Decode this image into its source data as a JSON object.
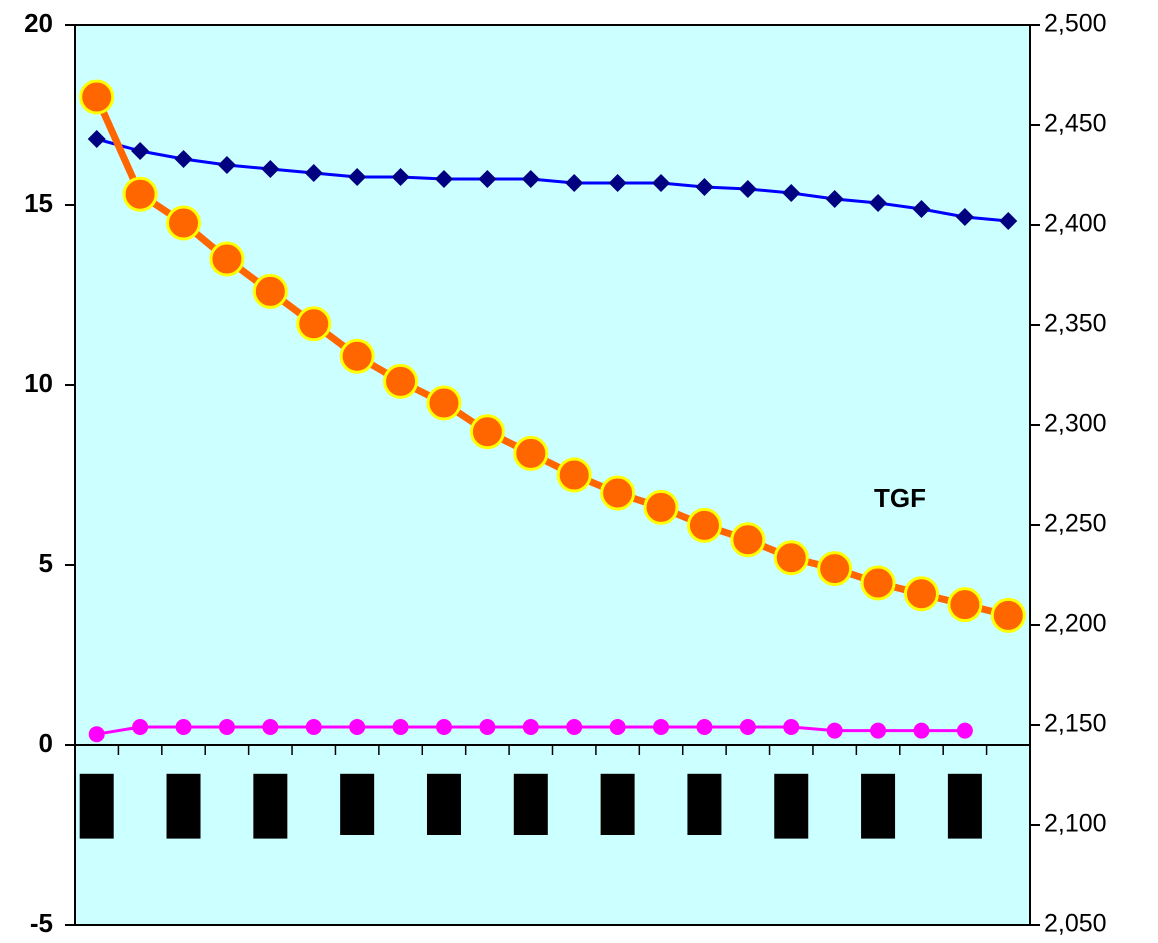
{
  "chart_data": {
    "type": "line",
    "categories": [
      null,
      null,
      null,
      null,
      null,
      null,
      null,
      null,
      null,
      null,
      null,
      null,
      null,
      null,
      null,
      null,
      null,
      null,
      null,
      null,
      null,
      null
    ],
    "ylim": [
      -5,
      20
    ],
    "yticks": [
      20,
      15,
      10,
      5,
      0,
      -5
    ],
    "y2lim": [
      2050,
      2500
    ],
    "y2ticks": [
      {
        "value": 2500,
        "label": "2,500"
      },
      {
        "value": 2450,
        "label": "2,450"
      },
      {
        "value": 2400,
        "label": "2,400"
      },
      {
        "value": 2350,
        "label": "2,350"
      },
      {
        "value": 2300,
        "label": "2,300"
      },
      {
        "value": 2250,
        "label": "2,250"
      },
      {
        "value": 2200,
        "label": "2,200"
      },
      {
        "value": 2150,
        "label": "2,150"
      },
      {
        "value": 2100,
        "label": "2,100"
      },
      {
        "value": 2050,
        "label": "2,050"
      }
    ],
    "background": "#ccffff",
    "annotation": "TGF",
    "series": [
      {
        "color": "#000080",
        "line_color": "#0000ff",
        "marker": "diamond",
        "axis": "y2",
        "values": [
          2443,
          2437,
          2433,
          2430,
          2428,
          2426,
          2424,
          2424,
          2423,
          2423,
          2423,
          2421,
          2421,
          2421,
          2419,
          2418,
          2416,
          2413,
          2411,
          2408,
          2404,
          2402
        ]
      },
      {
        "color": "#ff6600",
        "line_color": "#ff6600",
        "marker": "circle",
        "edge": "#ffff00",
        "values": [
          18.0,
          15.3,
          14.5,
          13.5,
          12.6,
          11.7,
          10.8,
          10.1,
          9.5,
          8.7,
          8.1,
          7.5,
          7.0,
          6.6,
          6.1,
          5.7,
          5.2,
          4.9,
          4.5,
          4.2,
          3.9,
          3.6
        ]
      },
      {
        "color": "#ff00ff",
        "line_color": "#ff00ff",
        "marker": "dot",
        "values": [
          0.3,
          0.5,
          0.5,
          0.5,
          0.5,
          0.5,
          0.5,
          0.5,
          0.5,
          0.5,
          0.5,
          0.5,
          0.5,
          0.5,
          0.5,
          0.5,
          0.5,
          0.4,
          0.4,
          0.4,
          0.4,
          null
        ]
      }
    ],
    "bars": {
      "color": "#000000",
      "high": [
        -0.8,
        null,
        -0.8,
        null,
        -0.8,
        null,
        -0.8,
        null,
        -0.8,
        null,
        -0.8,
        null,
        -0.8,
        null,
        -0.8,
        null,
        -0.8,
        null,
        -0.8,
        null,
        -0.8,
        null
      ],
      "low": [
        -2.6,
        null,
        -2.6,
        null,
        -2.6,
        null,
        -2.5,
        null,
        -2.5,
        null,
        -2.5,
        null,
        -2.5,
        null,
        -2.5,
        null,
        -2.6,
        null,
        -2.6,
        null,
        -2.6,
        null
      ]
    }
  }
}
